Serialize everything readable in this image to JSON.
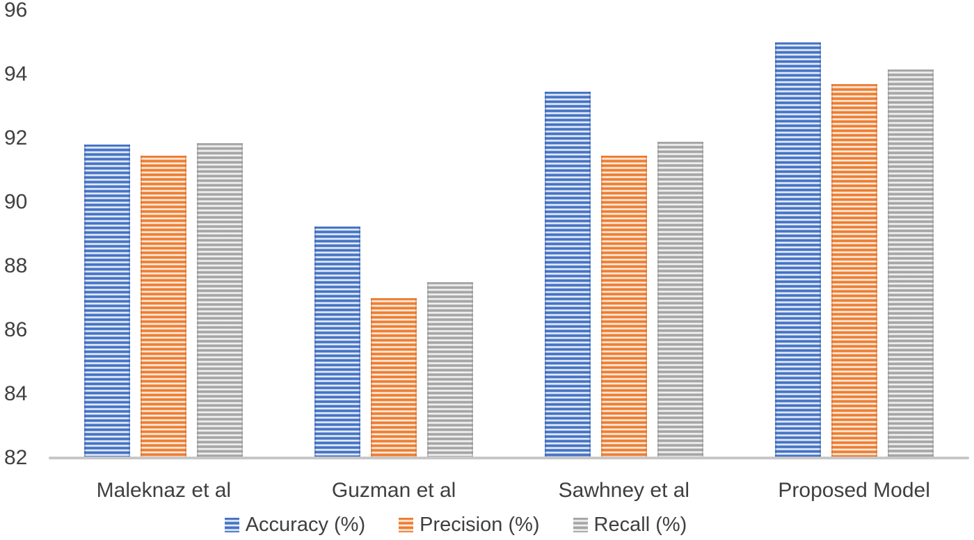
{
  "chart_data": {
    "type": "bar",
    "title": "",
    "xlabel": "",
    "ylabel": "",
    "categories": [
      "Maleknaz et al",
      "Guzman et al",
      "Sawhney et al",
      "Proposed Model"
    ],
    "series": [
      {
        "name": "Accuracy (%)",
        "key": "accuracy",
        "color": "#4472C4",
        "color_light": "#EBF1FA",
        "color_edge": "#2F5BA9",
        "values": [
          91.8,
          89.25,
          93.45,
          95.0
        ]
      },
      {
        "name": "Precision (%)",
        "key": "precision",
        "color": "#ED7D31",
        "color_light": "#FCEFE4",
        "color_edge": "#CC6423",
        "values": [
          91.45,
          87.0,
          91.45,
          93.7
        ]
      },
      {
        "name": "Recall (%)",
        "key": "recall",
        "color": "#A5A5A5",
        "color_light": "#F4F4F4",
        "color_edge": "#8A8A8A",
        "values": [
          91.85,
          87.5,
          91.9,
          94.15
        ]
      }
    ],
    "ylim": [
      82,
      96
    ],
    "yticks": [
      82,
      84,
      86,
      88,
      90,
      92,
      94,
      96
    ],
    "grid": false,
    "legend_position": "bottom",
    "bar_fill_pattern": "horizontal-stripes"
  },
  "axis": {
    "line_color": "#C7C7C7",
    "text_color": "#404040",
    "background": "#FFFFFF"
  }
}
